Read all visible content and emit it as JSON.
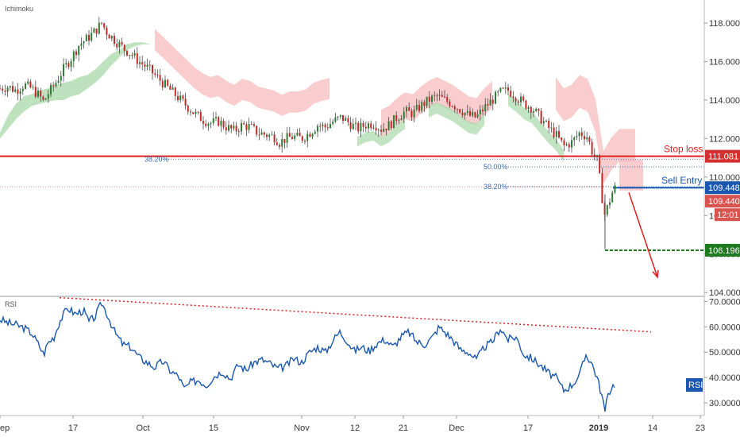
{
  "chart_data": [
    {
      "type": "line",
      "panel": "price",
      "indicator_label": "Ichimoku",
      "ylim": [
        103.8,
        119.2
      ],
      "yticks": [
        104,
        106,
        108,
        110,
        112,
        114,
        116,
        118
      ],
      "ytick_labels": [
        "104.000",
        "106.000",
        "108.000",
        "110.000",
        "112.000",
        "114.000",
        "116.000",
        "118.000"
      ],
      "price_path": [
        [
          0,
          114.6
        ],
        [
          10,
          114.7
        ],
        [
          20,
          114.5
        ],
        [
          30,
          114.8
        ],
        [
          40,
          114.6
        ],
        [
          50,
          114.2
        ],
        [
          55,
          113.9
        ],
        [
          60,
          114.3
        ],
        [
          70,
          114.9
        ],
        [
          80,
          115.6
        ],
        [
          90,
          116.2
        ],
        [
          100,
          116.9
        ],
        [
          110,
          117.2
        ],
        [
          120,
          117.6
        ],
        [
          128,
          118.0
        ],
        [
          135,
          117.5
        ],
        [
          145,
          117.1
        ],
        [
          155,
          116.7
        ],
        [
          165,
          116.4
        ],
        [
          175,
          116.0
        ],
        [
          185,
          115.7
        ],
        [
          195,
          115.3
        ],
        [
          205,
          114.9
        ],
        [
          215,
          114.5
        ],
        [
          225,
          114.1
        ],
        [
          235,
          113.7
        ],
        [
          245,
          113.3
        ],
        [
          255,
          113.0
        ],
        [
          265,
          112.8
        ],
        [
          275,
          112.9
        ],
        [
          285,
          112.6
        ],
        [
          295,
          112.4
        ],
        [
          305,
          112.7
        ],
        [
          315,
          112.6
        ],
        [
          325,
          112.3
        ],
        [
          335,
          112.2
        ],
        [
          345,
          112.1
        ],
        [
          352,
          111.8
        ],
        [
          360,
          112.0
        ],
        [
          370,
          112.1
        ],
        [
          380,
          112.0
        ],
        [
          390,
          112.3
        ],
        [
          400,
          112.7
        ],
        [
          410,
          112.6
        ],
        [
          420,
          112.9
        ],
        [
          430,
          113.1
        ],
        [
          440,
          112.8
        ],
        [
          450,
          112.5
        ],
        [
          460,
          112.7
        ],
        [
          470,
          112.8
        ],
        [
          480,
          112.5
        ],
        [
          490,
          112.7
        ],
        [
          500,
          113.1
        ],
        [
          510,
          113.4
        ],
        [
          520,
          113.3
        ],
        [
          530,
          113.7
        ],
        [
          540,
          114.0
        ],
        [
          550,
          114.2
        ],
        [
          560,
          114.0
        ],
        [
          570,
          113.8
        ],
        [
          580,
          113.5
        ],
        [
          590,
          113.2
        ],
        [
          600,
          113.1
        ],
        [
          610,
          113.6
        ],
        [
          620,
          114.0
        ],
        [
          630,
          114.4
        ],
        [
          640,
          114.5
        ],
        [
          650,
          114.2
        ],
        [
          660,
          113.8
        ],
        [
          670,
          113.6
        ],
        [
          680,
          113.1
        ],
        [
          690,
          112.6
        ],
        [
          700,
          112.2
        ],
        [
          710,
          111.6
        ],
        [
          720,
          111.8
        ],
        [
          730,
          112.3
        ],
        [
          740,
          112.1
        ],
        [
          745,
          111.4
        ],
        [
          752,
          110.9
        ],
        [
          757,
          109.4
        ],
        [
          761,
          108.0
        ],
        [
          764,
          108.3
        ],
        [
          768,
          108.8
        ],
        [
          772,
          109.3
        ],
        [
          776,
          109.5
        ]
      ],
      "long_wick": {
        "x": 762,
        "high": 109.1,
        "low": 106.25
      },
      "cloud_green": [
        [
          0,
          112.0
        ],
        [
          10,
          112.5
        ],
        [
          20,
          113.0
        ],
        [
          30,
          113.4
        ],
        [
          40,
          113.7
        ],
        [
          50,
          113.8
        ],
        [
          60,
          113.9
        ],
        [
          70,
          114.0
        ],
        [
          80,
          114.0
        ],
        [
          90,
          114.2
        ],
        [
          100,
          114.3
        ],
        [
          110,
          114.6
        ],
        [
          120,
          114.9
        ],
        [
          130,
          115.3
        ],
        [
          140,
          115.8
        ],
        [
          150,
          116.2
        ],
        [
          160,
          116.6
        ],
        [
          170,
          116.8
        ],
        [
          180,
          116.9
        ],
        [
          190,
          116.9
        ]
      ],
      "cloud_green_top": [
        [
          0,
          112.3
        ],
        [
          10,
          113.2
        ],
        [
          20,
          113.8
        ],
        [
          30,
          114.2
        ],
        [
          40,
          114.3
        ],
        [
          50,
          114.5
        ],
        [
          60,
          114.6
        ],
        [
          70,
          114.8
        ],
        [
          80,
          114.9
        ],
        [
          90,
          115.0
        ],
        [
          100,
          115.2
        ],
        [
          110,
          115.3
        ],
        [
          120,
          115.6
        ],
        [
          130,
          116.0
        ],
        [
          140,
          116.4
        ],
        [
          150,
          116.6
        ],
        [
          160,
          116.9
        ],
        [
          170,
          117.0
        ],
        [
          180,
          117.0
        ],
        [
          190,
          116.9
        ]
      ],
      "stop_loss": 111.081,
      "stop_loss_label": "Stop loss",
      "stop_loss_tag": "111.081",
      "sell_entry": 109.448,
      "sell_entry_label": "Sell Entry",
      "sell_entry_tag": "109.448",
      "last_price_tag": "109.440",
      "countdown_tag": "12:01",
      "take_profit": 106.196,
      "take_profit_tag": "106.196",
      "fib_levels": [
        {
          "label": "38.20%",
          "price": 110.93
        },
        {
          "label": "50.00%",
          "price": 110.53
        },
        {
          "label": "38.20%",
          "price": 109.5
        }
      ]
    },
    {
      "type": "line",
      "panel": "rsi",
      "indicator_label": "RSI",
      "legend_tag": "RSI",
      "ylim": [
        25,
        72
      ],
      "yticks": [
        30,
        40,
        50,
        60,
        70
      ],
      "ytick_labels": [
        "30.0000",
        "40.0000",
        "50.0000",
        "60.0000",
        "70.0000"
      ],
      "rsi_path": [
        [
          0,
          63.0
        ],
        [
          10,
          61.5
        ],
        [
          20,
          60.8
        ],
        [
          30,
          59.6
        ],
        [
          40,
          57.5
        ],
        [
          50,
          52.2
        ],
        [
          55,
          49.0
        ],
        [
          60,
          53.5
        ],
        [
          68,
          56.0
        ],
        [
          75,
          62.0
        ],
        [
          85,
          67.5
        ],
        [
          95,
          65.0
        ],
        [
          105,
          66.5
        ],
        [
          112,
          62.0
        ],
        [
          120,
          64.0
        ],
        [
          128,
          69.5
        ],
        [
          135,
          65.0
        ],
        [
          145,
          57.5
        ],
        [
          155,
          53.0
        ],
        [
          165,
          52.0
        ],
        [
          175,
          48.0
        ],
        [
          185,
          46.0
        ],
        [
          195,
          44.0
        ],
        [
          205,
          46.5
        ],
        [
          215,
          42.5
        ],
        [
          225,
          40.5
        ],
        [
          232,
          35.5
        ],
        [
          240,
          38.0
        ],
        [
          250,
          39.0
        ],
        [
          260,
          37.0
        ],
        [
          270,
          40.5
        ],
        [
          280,
          42.5
        ],
        [
          290,
          39.5
        ],
        [
          300,
          45.0
        ],
        [
          310,
          43.0
        ],
        [
          320,
          46.0
        ],
        [
          330,
          47.0
        ],
        [
          340,
          45.5
        ],
        [
          350,
          43.5
        ],
        [
          360,
          44.5
        ],
        [
          370,
          47.5
        ],
        [
          380,
          46.0
        ],
        [
          390,
          50.0
        ],
        [
          400,
          52.0
        ],
        [
          410,
          50.0
        ],
        [
          420,
          55.0
        ],
        [
          428,
          58.0
        ],
        [
          436,
          55.0
        ],
        [
          446,
          50.5
        ],
        [
          455,
          52.0
        ],
        [
          465,
          50.5
        ],
        [
          475,
          53.5
        ],
        [
          485,
          55.0
        ],
        [
          495,
          52.0
        ],
        [
          505,
          56.0
        ],
        [
          515,
          58.0
        ],
        [
          525,
          54.0
        ],
        [
          535,
          53.0
        ],
        [
          545,
          56.0
        ],
        [
          553,
          60.0
        ],
        [
          560,
          58.0
        ],
        [
          570,
          55.0
        ],
        [
          580,
          51.0
        ],
        [
          590,
          50.0
        ],
        [
          600,
          47.0
        ],
        [
          610,
          52.0
        ],
        [
          620,
          54.0
        ],
        [
          630,
          59.5
        ],
        [
          640,
          55.0
        ],
        [
          650,
          56.0
        ],
        [
          660,
          49.0
        ],
        [
          670,
          47.5
        ],
        [
          680,
          45.0
        ],
        [
          690,
          42.0
        ],
        [
          700,
          40.0
        ],
        [
          710,
          35.0
        ],
        [
          720,
          37.0
        ],
        [
          730,
          41.0
        ],
        [
          738,
          49.0
        ],
        [
          745,
          46.0
        ],
        [
          752,
          40.0
        ],
        [
          758,
          33.0
        ],
        [
          762,
          26.5
        ],
        [
          766,
          33.5
        ],
        [
          770,
          36.0
        ],
        [
          774,
          37.5
        ]
      ],
      "trendline": [
        [
          75,
          71.5
        ],
        [
          820,
          58.0
        ]
      ]
    }
  ],
  "x_axis": {
    "labels": [
      "ep",
      "17",
      "Oct",
      "15",
      "Nov",
      "12",
      "21",
      "Dec",
      "17",
      "2019",
      "14",
      "23"
    ],
    "bold_label": "2019"
  }
}
